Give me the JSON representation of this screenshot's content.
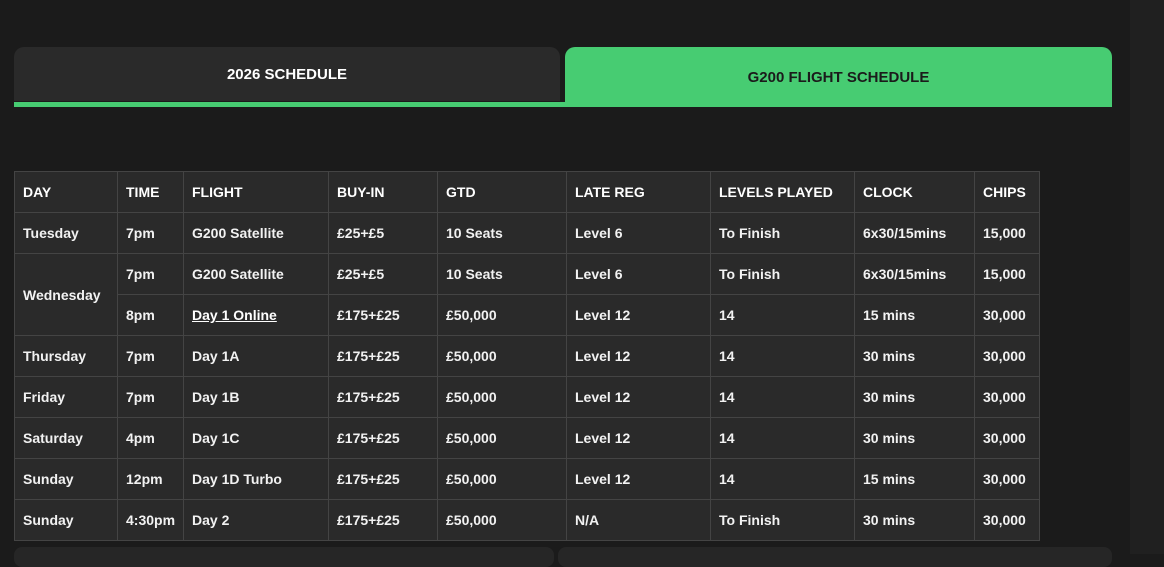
{
  "tabs": [
    {
      "label": "2026 SCHEDULE",
      "active": false
    },
    {
      "label": "G200 FLIGHT SCHEDULE",
      "active": true
    }
  ],
  "accent_color": "#47cc72",
  "table": {
    "headers": [
      "DAY",
      "TIME",
      "FLIGHT",
      "BUY-IN",
      "GTD",
      "LATE REG",
      "LEVELS PLAYED",
      "CLOCK",
      "CHIPS"
    ],
    "rows": [
      {
        "day": "Tuesday",
        "time": "7pm",
        "flight": "G200 Satellite",
        "buyin": "£25+£5",
        "gtd": "10 Seats",
        "latereg": "Level 6",
        "levels": "To Finish",
        "clock": "6x30/15mins",
        "chips": "15,000"
      },
      {
        "day": "Wednesday",
        "time": "7pm",
        "flight": "G200 Satellite",
        "buyin": "£25+£5",
        "gtd": "10 Seats",
        "latereg": "Level 6",
        "levels": "To Finish",
        "clock": "6x30/15mins",
        "chips": "15,000"
      },
      {
        "day": "",
        "time": "8pm",
        "flight": "Day 1 Online",
        "flight_link": true,
        "buyin": "£175+£25",
        "gtd": "£50,000",
        "latereg": "Level 12",
        "levels": "14",
        "clock": "15 mins",
        "chips": "30,000"
      },
      {
        "day": "Thursday",
        "time": "7pm",
        "flight": "Day 1A",
        "buyin": "£175+£25",
        "gtd": "£50,000",
        "latereg": "Level 12",
        "levels": "14",
        "clock": "30 mins",
        "chips": "30,000"
      },
      {
        "day": "Friday",
        "time": "7pm",
        "flight": "Day 1B",
        "buyin": "£175+£25",
        "gtd": "£50,000",
        "latereg": "Level 12",
        "levels": "14",
        "clock": "30 mins",
        "chips": "30,000"
      },
      {
        "day": "Saturday",
        "time": "4pm",
        "flight": "Day 1C",
        "buyin": "£175+£25",
        "gtd": "£50,000",
        "latereg": "Level 12",
        "levels": "14",
        "clock": "30 mins",
        "chips": "30,000"
      },
      {
        "day": "Sunday",
        "time": "12pm",
        "flight": "Day 1D Turbo",
        "buyin": "£175+£25",
        "gtd": "£50,000",
        "latereg": "Level 12",
        "levels": "14",
        "clock": "15 mins",
        "chips": "30,000"
      },
      {
        "day": "Sunday",
        "time": "4:30pm",
        "flight": "Day 2",
        "buyin": "£175+£25",
        "gtd": "£50,000",
        "latereg": "N/A",
        "levels": "To Finish",
        "clock": "30 mins",
        "chips": "30,000"
      }
    ]
  }
}
